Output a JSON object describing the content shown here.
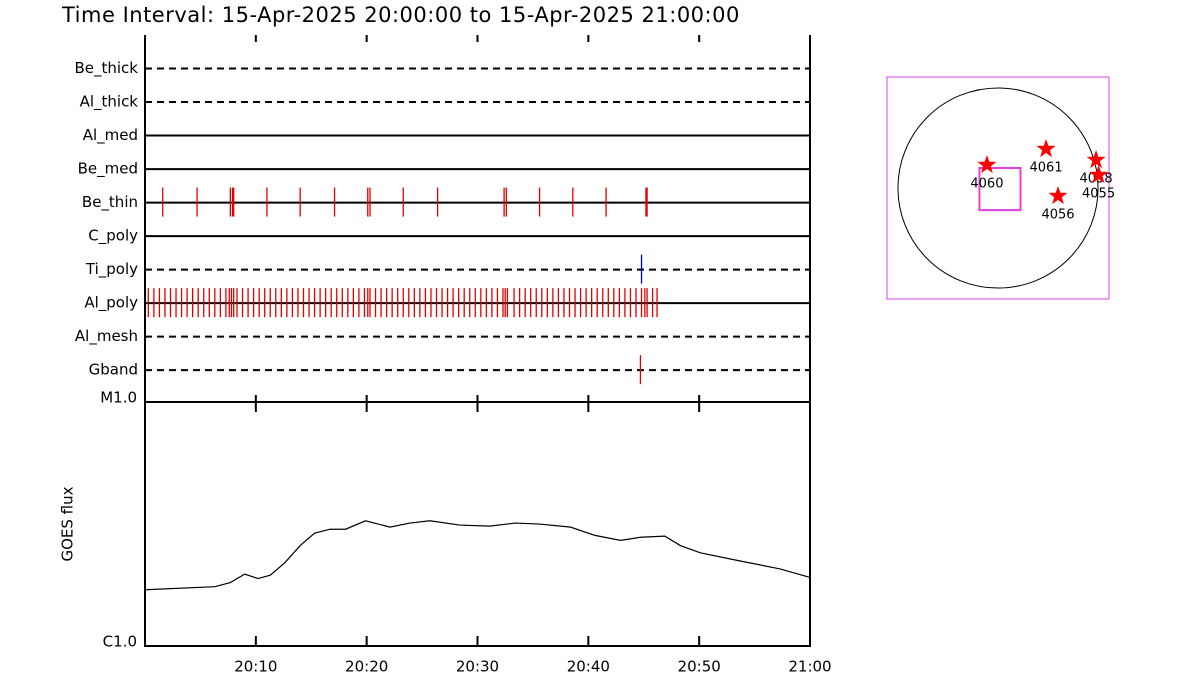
{
  "title": "Time Interval: 15-Apr-2025 20:00:00 to 15-Apr-2025 21:00:00",
  "chart_data": [
    {
      "type": "timeline",
      "xlim": [
        0,
        60
      ],
      "xticks": [
        0,
        10,
        20,
        30,
        40,
        50,
        60
      ],
      "rows": [
        {
          "name": "Be_thick",
          "style": "dashed",
          "color": "#e00000",
          "events": []
        },
        {
          "name": "Al_thick",
          "style": "dashed",
          "color": "#e00000",
          "events": []
        },
        {
          "name": "Al_med",
          "style": "solid",
          "color": "#e00000",
          "events": []
        },
        {
          "name": "Be_med",
          "style": "solid",
          "color": "#e00000",
          "events": []
        },
        {
          "name": "Be_thin",
          "style": "solid",
          "color": "#e00000",
          "events": [
            1.6,
            4.7,
            7.7,
            7.9,
            8.0,
            11.0,
            14.0,
            17.1,
            20.1,
            20.3,
            23.3,
            26.4,
            32.4,
            32.6,
            35.6,
            38.6,
            41.6,
            45.2,
            45.3
          ]
        },
        {
          "name": "C_poly",
          "style": "solid",
          "color": "#e00000",
          "events": []
        },
        {
          "name": "Ti_poly",
          "style": "dashed",
          "color": "#0000d0",
          "events": [
            44.8
          ]
        },
        {
          "name": "Al_poly",
          "style": "solid",
          "color": "#e00000",
          "events": [
            0.3,
            0.8,
            1.3,
            1.8,
            2.3,
            2.8,
            3.3,
            3.8,
            4.3,
            4.8,
            5.3,
            5.8,
            6.3,
            6.8,
            7.3,
            7.6,
            7.8,
            8.0,
            8.3,
            8.8,
            9.3,
            9.8,
            10.3,
            10.8,
            11.3,
            11.8,
            12.3,
            12.8,
            13.3,
            13.8,
            14.3,
            14.8,
            15.3,
            15.8,
            16.3,
            16.8,
            17.3,
            17.8,
            18.3,
            18.8,
            19.3,
            19.8,
            20.1,
            20.3,
            20.8,
            21.3,
            21.8,
            22.3,
            22.8,
            23.3,
            23.8,
            24.3,
            24.8,
            25.3,
            25.8,
            26.3,
            26.8,
            27.3,
            27.8,
            28.3,
            28.8,
            29.3,
            29.8,
            30.3,
            30.8,
            31.3,
            31.8,
            32.3,
            32.5,
            32.7,
            33.3,
            33.8,
            34.3,
            34.8,
            35.3,
            35.8,
            36.3,
            36.8,
            37.3,
            37.8,
            38.3,
            38.8,
            39.3,
            39.8,
            40.3,
            40.8,
            41.3,
            41.8,
            42.3,
            42.8,
            43.3,
            43.8,
            44.3,
            44.8,
            45.1,
            45.3,
            45.8,
            46.2
          ]
        },
        {
          "name": "Al_mesh",
          "style": "dashed",
          "color": "#e00000",
          "events": []
        },
        {
          "name": "Gband",
          "style": "dashed",
          "color": "#e00000",
          "events": [
            44.7
          ]
        }
      ]
    },
    {
      "type": "line",
      "ylabel": "GOES flux",
      "log_scale": true,
      "color": "#000000",
      "xlim": [
        0,
        60
      ],
      "xticks": [
        {
          "value": 10,
          "label": "20:10"
        },
        {
          "value": 20,
          "label": "20:20"
        },
        {
          "value": 30,
          "label": "20:30"
        },
        {
          "value": 40,
          "label": "20:40"
        },
        {
          "value": 50,
          "label": "20:50"
        },
        {
          "value": 60,
          "label": "21:00"
        }
      ],
      "ylim": [
        1e-06,
        1e-05
      ],
      "yticks": [
        {
          "value": 1e-06,
          "label": "C1.0"
        },
        {
          "value": 1e-05,
          "label": "M1.0"
        }
      ],
      "x": [
        0,
        6.3,
        7.7,
        9.0,
        10.2,
        11.3,
        12.6,
        14.0,
        15.3,
        16.7,
        18.1,
        19.9,
        22.1,
        23.9,
        25.7,
        28.4,
        31.1,
        33.4,
        35.6,
        38.4,
        40.6,
        42.9,
        44.7,
        46.9,
        48.3,
        50.1,
        53.7,
        57.3,
        60
      ],
      "values": [
        1.7e-06,
        1.75e-06,
        1.82e-06,
        1.97e-06,
        1.89e-06,
        1.95e-06,
        2.19e-06,
        2.58e-06,
        2.9e-06,
        3.01e-06,
        3.01e-06,
        3.26e-06,
        3.07e-06,
        3.19e-06,
        3.26e-06,
        3.13e-06,
        3.1e-06,
        3.19e-06,
        3.16e-06,
        3.07e-06,
        2.84e-06,
        2.71e-06,
        2.79e-06,
        2.82e-06,
        2.58e-06,
        2.41e-06,
        2.23e-06,
        2.07e-06,
        1.91e-06
      ]
    },
    {
      "type": "map",
      "xlim": [
        -1065,
        1065
      ],
      "ylim": [
        -1065,
        1065
      ],
      "disk_radius": 960,
      "frame_color": "#e040e0",
      "star_color": "#ff0000",
      "fov": {
        "x": 19,
        "y": -10,
        "width": 394,
        "height": 404
      },
      "regions": [
        {
          "label": "4060",
          "x": -106,
          "y": 221
        },
        {
          "label": "4061",
          "x": 461,
          "y": 374
        },
        {
          "label": "4058",
          "x": 941,
          "y": 269
        },
        {
          "label": "4055",
          "x": 965,
          "y": 125
        },
        {
          "label": "4056",
          "x": 576,
          "y": -77
        }
      ]
    }
  ]
}
